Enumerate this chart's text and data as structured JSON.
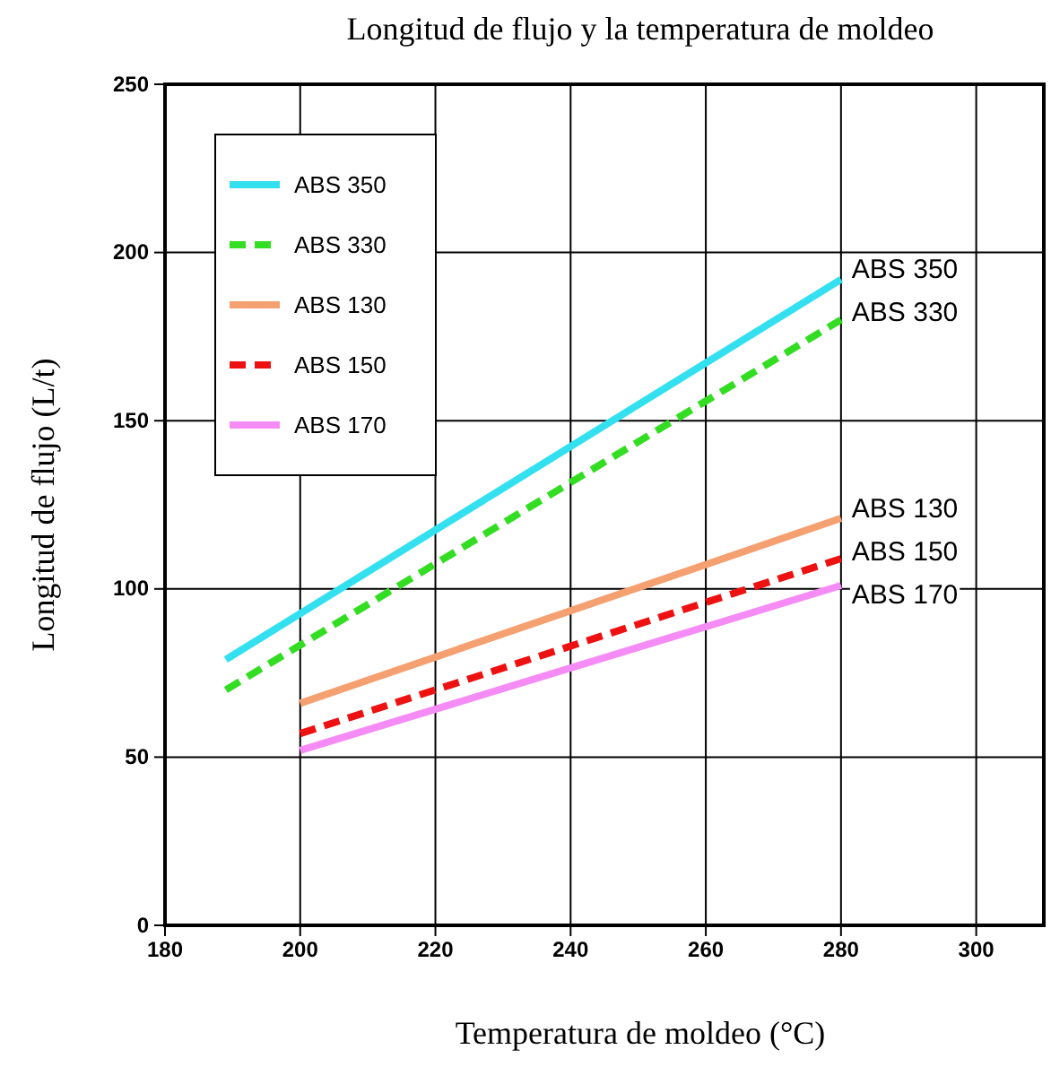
{
  "chart_data": {
    "type": "line",
    "title": "Longitud de flujo y la temperatura de moldeo",
    "xlabel": "Temperatura de moldeo (°C)",
    "ylabel": "Longitud de flujo (L/t)",
    "xlim": [
      180,
      310
    ],
    "xticks": [
      180,
      200,
      220,
      240,
      260,
      280,
      300
    ],
    "ylim": [
      0,
      250
    ],
    "yticks": [
      0,
      50,
      100,
      150,
      200,
      250
    ],
    "grid": true,
    "legend": "top left",
    "series": [
      {
        "name": "ABS 350",
        "color": "#33e0f0",
        "line_style": "solid",
        "x": [
          189,
          280
        ],
        "values": [
          79,
          192
        ]
      },
      {
        "name": "ABS 330",
        "color": "#33dd22",
        "line_style": "dashed",
        "x": [
          189,
          280
        ],
        "values": [
          70,
          180
        ]
      },
      {
        "name": "ABS 130",
        "color": "#f5a070",
        "line_style": "solid",
        "x": [
          200,
          280
        ],
        "values": [
          66,
          121
        ]
      },
      {
        "name": "ABS 150",
        "color": "#ee1111",
        "line_style": "dashed",
        "x": [
          200,
          280
        ],
        "values": [
          57,
          109
        ]
      },
      {
        "name": "ABS 170",
        "color": "#f58cf5",
        "line_style": "solid",
        "x": [
          200,
          280
        ],
        "values": [
          52,
          101
        ]
      }
    ]
  }
}
